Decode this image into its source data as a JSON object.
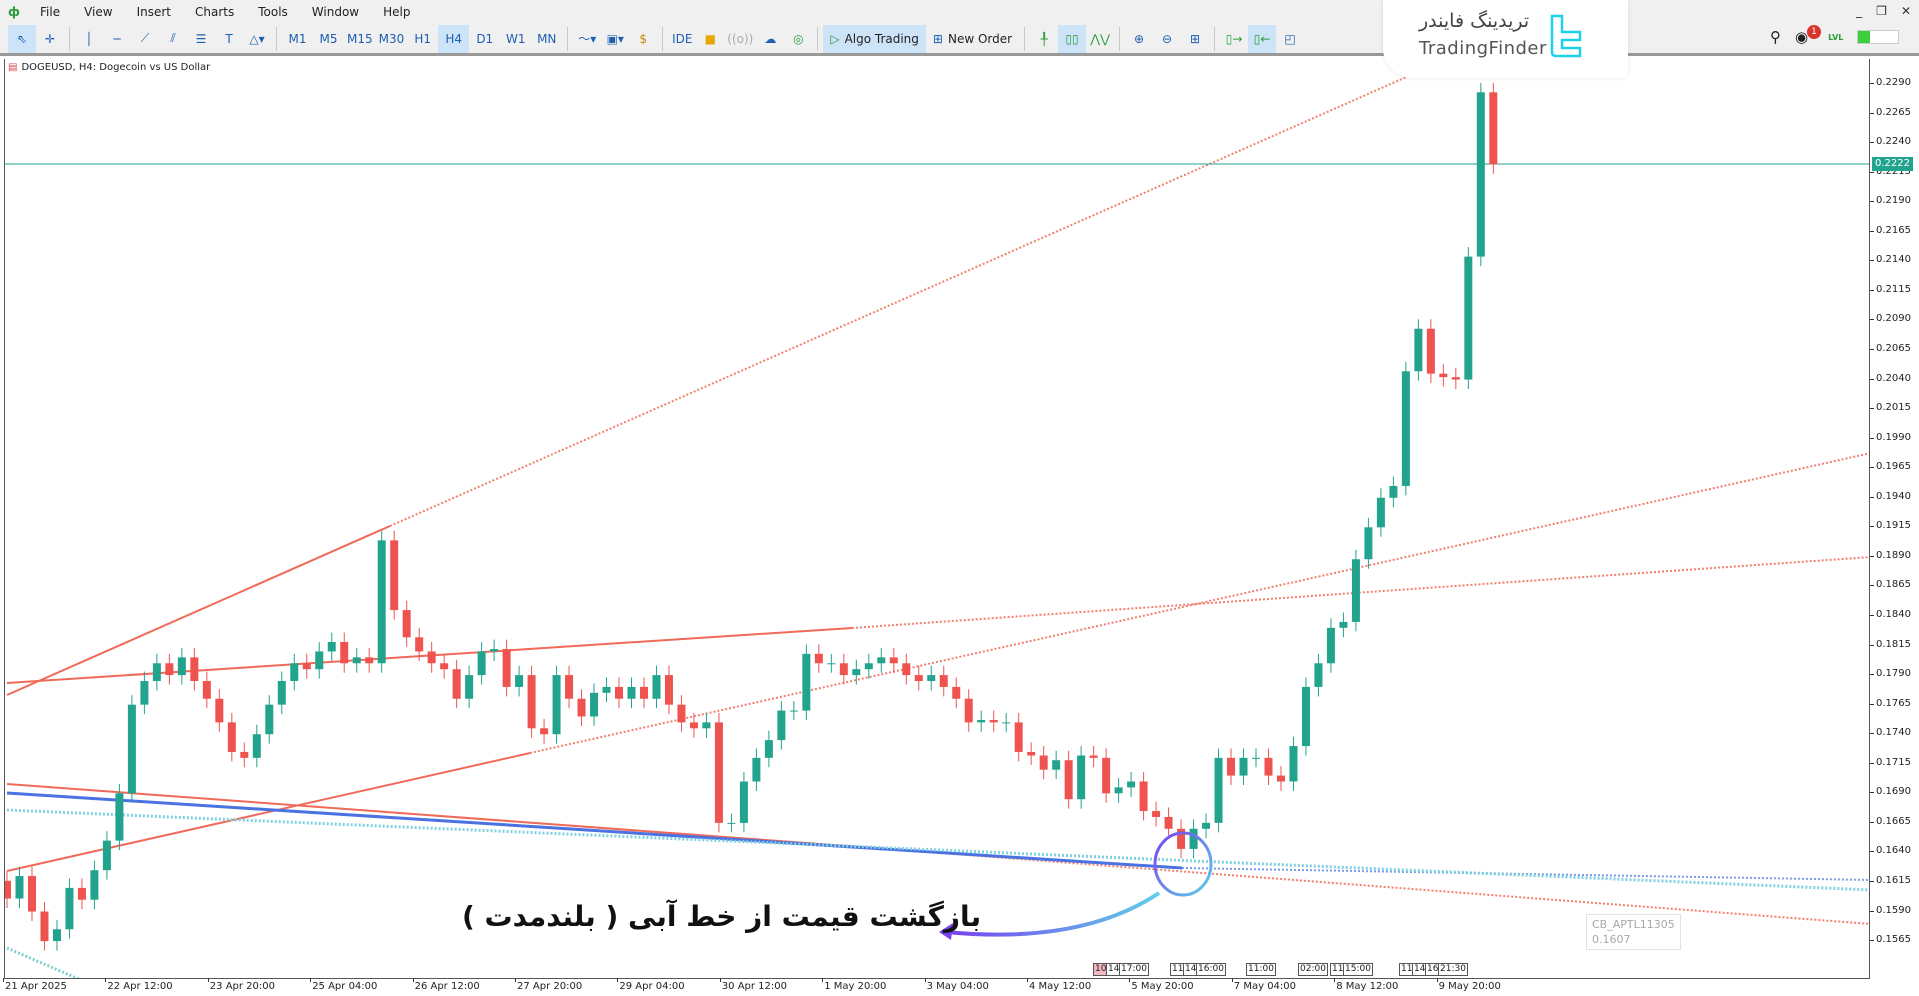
{
  "menu": {
    "items": [
      "File",
      "View",
      "Insert",
      "Charts",
      "Tools",
      "Window",
      "Help"
    ]
  },
  "window_controls": [
    "_",
    "❐",
    "✕"
  ],
  "toolbar": {
    "timeframes": [
      "M1",
      "M5",
      "M15",
      "M30",
      "H1",
      "H4",
      "D1",
      "W1",
      "MN"
    ],
    "selected_timeframe": "H4",
    "ide_label": "IDE",
    "algo_trading_label": "Algo Trading",
    "new_order_label": "New Order",
    "notification_count": "1",
    "level_label": "LVL"
  },
  "logo": {
    "fa": "تریدینگ فایندر",
    "en": "TradingFinder",
    "color": "#1fd1e8"
  },
  "chart": {
    "title": "DOGEUSD, H4:  Dogecoin vs US Dollar",
    "current_price": "0.2222",
    "up_color": "#22a38e",
    "down_color": "#ef5350",
    "annotation": "بازگشت قیمت از خط آبی ( بلندمدت )",
    "ghost_label": [
      "CB_APTL11305",
      "0.1607"
    ],
    "price_labels": [
      "0.2290",
      "0.2265",
      "0.2240",
      "0.2215",
      "0.2190",
      "0.2165",
      "0.2140",
      "0.2115",
      "0.2090",
      "0.2065",
      "0.2040",
      "0.2015",
      "0.1990",
      "0.1965",
      "0.1940",
      "0.1915",
      "0.1890",
      "0.1865",
      "0.1840",
      "0.1815",
      "0.1790",
      "0.1765",
      "0.1740",
      "0.1715",
      "0.1690",
      "0.1665",
      "0.1640",
      "0.1615",
      "0.1590",
      "0.1565"
    ],
    "time_labels": [
      "21 Apr 2025",
      "22 Apr 12:00",
      "23 Apr 20:00",
      "25 Apr 04:00",
      "26 Apr 12:00",
      "27 Apr 20:00",
      "29 Apr 04:00",
      "30 Apr 12:00",
      "1 May 20:00",
      "3 May 04:00",
      "4 May 12:00",
      "5 May 20:00",
      "7 May 04:00",
      "8 May 12:00",
      "9 May 20:00"
    ],
    "session_tags": [
      [
        "10",
        "14",
        "17:00"
      ],
      [
        "11",
        "14",
        "16:00"
      ],
      [
        "11:00"
      ],
      [
        "02:00",
        "11",
        "15:00"
      ],
      [
        "11",
        "14",
        "16",
        "21:30"
      ]
    ]
  },
  "chart_data": {
    "type": "candlestick",
    "symbol": "DOGEUSD",
    "timeframe": "H4",
    "ylim": [
      0.1545,
      0.231
    ],
    "closes": [
      0.1601,
      0.162,
      0.159,
      0.1565,
      0.1575,
      0.161,
      0.16,
      0.1625,
      0.165,
      0.169,
      0.1765,
      0.1785,
      0.18,
      0.179,
      0.1805,
      0.1785,
      0.177,
      0.175,
      0.1725,
      0.172,
      0.174,
      0.1765,
      0.1785,
      0.18,
      0.1795,
      0.181,
      0.1818,
      0.18,
      0.1805,
      0.18,
      0.1904,
      0.1845,
      0.1822,
      0.181,
      0.18,
      0.1795,
      0.177,
      0.179,
      0.181,
      0.1812,
      0.178,
      0.179,
      0.1745,
      0.174,
      0.179,
      0.177,
      0.1755,
      0.1775,
      0.178,
      0.177,
      0.178,
      0.177,
      0.179,
      0.1765,
      0.175,
      0.1745,
      0.175,
      0.1665,
      0.1665,
      0.17,
      0.172,
      0.1735,
      0.176,
      0.176,
      0.1808,
      0.18,
      0.18,
      0.179,
      0.1795,
      0.18,
      0.1805,
      0.18,
      0.179,
      0.1785,
      0.179,
      0.178,
      0.177,
      0.175,
      0.1752,
      0.175,
      0.175,
      0.1725,
      0.1722,
      0.171,
      0.1718,
      0.1685,
      0.1722,
      0.172,
      0.169,
      0.1695,
      0.17,
      0.1675,
      0.167,
      0.166,
      0.1643,
      0.166,
      0.1665,
      0.172,
      0.1705,
      0.172,
      0.172,
      0.1705,
      0.17,
      0.173,
      0.178,
      0.18,
      0.183,
      0.1835,
      0.1888,
      0.1915,
      0.194,
      0.195,
      0.2047,
      0.2083,
      0.2045,
      0.2042,
      0.204,
      0.2144,
      0.2283,
      0.2222
    ]
  }
}
